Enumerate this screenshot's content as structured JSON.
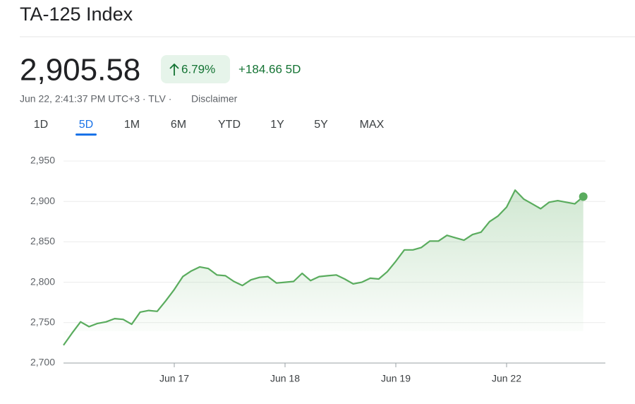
{
  "header": {
    "title": "TA-125 Index",
    "price": "2,905.58",
    "change_percent": "6.79%",
    "change": "+184.66 5D",
    "quote_info": "Jun 22, 2:41:37 PM UTC+3 · TLV ·",
    "disclaimer": "Disclaimer"
  },
  "tabs": {
    "items": [
      "1D",
      "5D",
      "1M",
      "6M",
      "YTD",
      "1Y",
      "5Y",
      "MAX"
    ],
    "selected": "5D"
  },
  "chart_data": {
    "type": "line",
    "color": "#5aac5e",
    "grid": true,
    "categories": [
      null,
      null,
      null,
      null,
      null,
      null,
      null,
      null,
      null,
      null,
      null,
      null,
      null,
      "Jun 17",
      null,
      null,
      null,
      null,
      null,
      null,
      null,
      null,
      null,
      null,
      null,
      null,
      "Jun 18",
      null,
      null,
      null,
      null,
      null,
      null,
      null,
      null,
      null,
      null,
      null,
      null,
      "Jun 19",
      null,
      null,
      null,
      null,
      null,
      null,
      null,
      null,
      null,
      null,
      null,
      null,
      "Jun 22",
      null,
      null,
      null,
      null,
      null,
      null,
      null,
      null,
      null
    ],
    "values": [
      2722,
      2737,
      2751,
      2745,
      2749,
      2751,
      2755,
      2754,
      2748,
      2763,
      2765,
      2764,
      2777,
      2791,
      2807,
      2814,
      2819,
      2817,
      2809,
      2808,
      2801,
      2796,
      2803,
      2806,
      2807,
      2799,
      2800,
      2801,
      2811,
      2802,
      2807,
      2808,
      2809,
      2804,
      2798,
      2800,
      2805,
      2804,
      2813,
      2826,
      2840,
      2840,
      2843,
      2851,
      2851,
      2858,
      2855,
      2852,
      2859,
      2862,
      2875,
      2882,
      2893,
      2914,
      2903,
      2897,
      2891,
      2899,
      2901,
      2899,
      2897,
      2906
    ],
    "ylim": [
      2700,
      2950
    ],
    "yticks": [
      {
        "value": 2700,
        "label": "2,700"
      },
      {
        "value": 2750,
        "label": "2,750"
      },
      {
        "value": 2800,
        "label": "2,800"
      },
      {
        "value": 2850,
        "label": "2,850"
      },
      {
        "value": 2900,
        "label": "2,900"
      },
      {
        "value": 2950,
        "label": "2,950"
      }
    ]
  }
}
